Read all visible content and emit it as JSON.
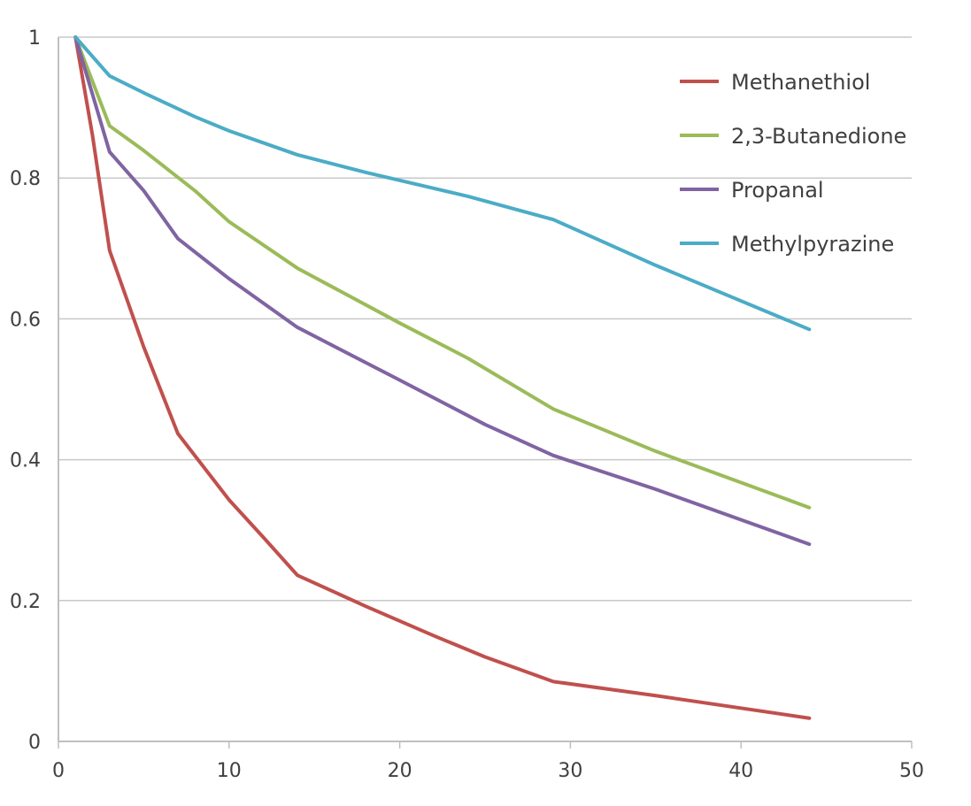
{
  "chart_data": {
    "type": "line",
    "title": "",
    "xlabel": "",
    "ylabel": "",
    "xlim": [
      0,
      50
    ],
    "ylim": [
      0,
      1
    ],
    "xticks": [
      "0",
      "10",
      "20",
      "30",
      "40",
      "50"
    ],
    "yticks": [
      "0",
      "0.2",
      "0.4",
      "0.6",
      "0.8",
      "1"
    ],
    "grid": true,
    "legend_position": "top-right",
    "series": [
      {
        "name": "Methanethiol",
        "color": "#c0504d",
        "x": [
          1,
          2,
          3,
          5,
          7,
          10,
          12,
          14,
          18,
          22,
          25,
          29,
          35,
          44
        ],
        "y": [
          1,
          0.86,
          0.697,
          0.56,
          0.437,
          0.343,
          0.29,
          0.236,
          0.192,
          0.15,
          0.12,
          0.085,
          0.065,
          0.033
        ]
      },
      {
        "name": "2,3-Butanedione",
        "color": "#9bbb59",
        "x": [
          1,
          3,
          5,
          8,
          10,
          14,
          20,
          24,
          29,
          35,
          44
        ],
        "y": [
          1,
          0.874,
          0.839,
          0.782,
          0.738,
          0.672,
          0.594,
          0.544,
          0.472,
          0.412,
          0.332
        ]
      },
      {
        "name": "Propanal",
        "color": "#8064a2",
        "x": [
          1,
          3,
          5,
          7,
          10,
          14,
          20,
          25,
          29,
          35,
          44
        ],
        "y": [
          1,
          0.837,
          0.782,
          0.714,
          0.657,
          0.588,
          0.513,
          0.45,
          0.406,
          0.358,
          0.28
        ]
      },
      {
        "name": "Methylpyrazine",
        "color": "#4bacc6",
        "x": [
          1,
          3,
          5,
          8,
          10,
          14,
          18,
          24,
          29,
          35,
          44
        ],
        "y": [
          1,
          0.945,
          0.921,
          0.887,
          0.867,
          0.833,
          0.808,
          0.774,
          0.741,
          0.676,
          0.585
        ]
      }
    ]
  }
}
